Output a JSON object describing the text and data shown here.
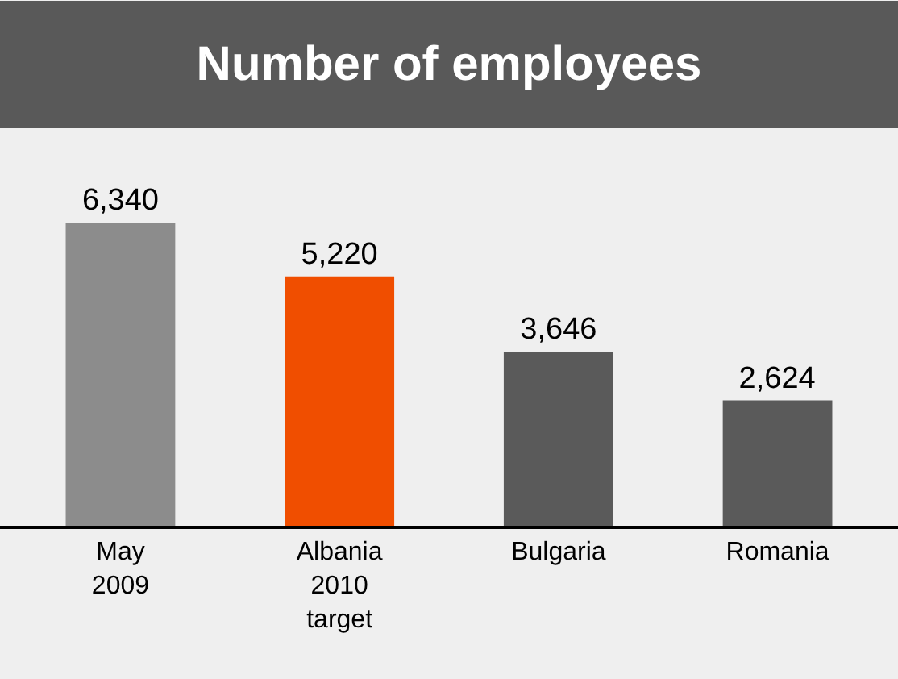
{
  "chart_data": {
    "type": "bar",
    "title": "Number of employees",
    "categories": [
      "May\n2009",
      "Albania\n2010\ntarget",
      "Bulgaria",
      "Romania"
    ],
    "values": [
      6340,
      5220,
      3646,
      2624
    ],
    "colors": [
      "#8c8c8c",
      "#f04e00",
      "#5a5a5a",
      "#5a5a5a"
    ],
    "value_labels": [
      "6,340",
      "5,220",
      "3,646",
      "2,624"
    ],
    "grid": false,
    "legend": false
  }
}
